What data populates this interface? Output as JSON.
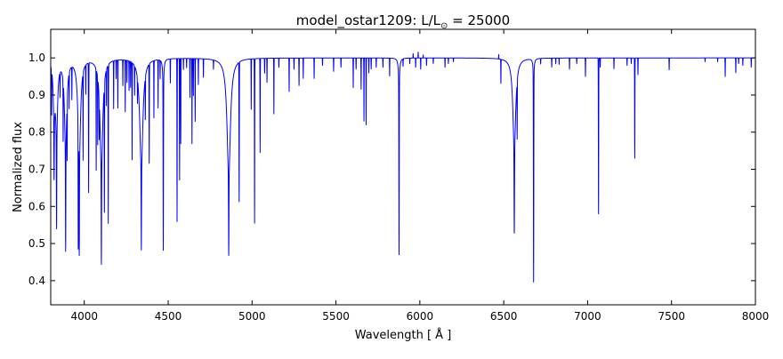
{
  "chart_data": {
    "type": "line",
    "title_parts": [
      "model_ostar1209: L/L",
      "⊙",
      " = 25000"
    ],
    "xlabel": "Wavelength [ Å ]",
    "ylabel": "Normalized flux",
    "xlim": [
      3800,
      8000
    ],
    "ylim": [
      0.335,
      1.077
    ],
    "xticks": [
      4000,
      4500,
      5000,
      5500,
      6000,
      6500,
      7000,
      7500,
      8000
    ],
    "yticks": [
      0.4,
      0.5,
      0.6,
      0.7,
      0.8,
      0.9,
      1.0
    ],
    "grid": false,
    "series": [
      {
        "name": "model_ostar1209",
        "color": "#0000ff",
        "continuum": 1.0,
        "line_format": "[center_A, min_flux, core_sigma_A, wing_depth, wing_hwhm_A]",
        "lines": [
          [
            3805,
            0.876,
            1.2,
            0,
            0
          ],
          [
            3820,
            0.7,
            1.5,
            0.15,
            6
          ],
          [
            3835,
            0.555,
            1.5,
            0.2,
            7
          ],
          [
            3856,
            0.93,
            1,
            0,
            0
          ],
          [
            3874,
            0.83,
            1,
            0,
            0
          ],
          [
            3889,
            0.483,
            1.5,
            0.25,
            8
          ],
          [
            3898,
            0.82,
            1,
            0,
            0
          ],
          [
            3910,
            0.9,
            1,
            0,
            0
          ],
          [
            3926,
            0.91,
            1,
            0,
            0
          ],
          [
            3964,
            0.605,
            1.2,
            0,
            0
          ],
          [
            3970,
            0.47,
            1.5,
            0.28,
            9
          ],
          [
            3993,
            0.756,
            1,
            0,
            0
          ],
          [
            4009,
            0.92,
            1,
            0,
            0
          ],
          [
            4026,
            0.646,
            1.3,
            0,
            0
          ],
          [
            4071,
            0.72,
            1,
            0,
            0
          ],
          [
            4080,
            0.81,
            1,
            0,
            0
          ],
          [
            4089,
            0.88,
            1,
            0,
            0
          ],
          [
            4102,
            0.445,
            1.5,
            0.3,
            10
          ],
          [
            4120,
            0.63,
            1.2,
            0,
            0
          ],
          [
            4132,
            0.9,
            1,
            0,
            0
          ],
          [
            4143,
            0.565,
            1.3,
            0,
            0
          ],
          [
            4175,
            0.87,
            1,
            0,
            0
          ],
          [
            4190,
            0.95,
            1,
            0,
            0
          ],
          [
            4200,
            0.87,
            1,
            0,
            0
          ],
          [
            4230,
            0.93,
            1,
            0,
            0
          ],
          [
            4244,
            0.86,
            1,
            0,
            0
          ],
          [
            4254,
            0.94,
            1,
            0,
            0
          ],
          [
            4267,
            0.92,
            1,
            0,
            0
          ],
          [
            4276,
            0.93,
            1,
            0,
            0
          ],
          [
            4285,
            0.735,
            1,
            0,
            0
          ],
          [
            4300,
            0.92,
            1,
            0,
            0
          ],
          [
            4317,
            0.93,
            1,
            0,
            0
          ],
          [
            4340,
            0.483,
            1.5,
            0.3,
            11
          ],
          [
            4364,
            0.88,
            1,
            0,
            0
          ],
          [
            4387,
            0.728,
            1.2,
            0,
            0
          ],
          [
            4415,
            0.845,
            1,
            0,
            0
          ],
          [
            4440,
            0.87,
            1,
            0,
            0
          ],
          [
            4452,
            0.95,
            1,
            0,
            0
          ],
          [
            4471,
            0.483,
            1.5,
            0.08,
            4
          ],
          [
            4513,
            0.935,
            1,
            0,
            0
          ],
          [
            4553,
            0.56,
            1.1,
            0,
            0
          ],
          [
            4568,
            0.672,
            1.1,
            0,
            0
          ],
          [
            4575,
            0.77,
            1,
            0,
            0
          ],
          [
            4591,
            0.97,
            1,
            0,
            0
          ],
          [
            4610,
            0.975,
            1,
            0,
            0
          ],
          [
            4630,
            0.895,
            1,
            0,
            0
          ],
          [
            4642,
            0.77,
            1,
            0,
            0
          ],
          [
            4650,
            0.9,
            1,
            0,
            0
          ],
          [
            4661,
            0.83,
            1,
            0,
            0
          ],
          [
            4680,
            0.93,
            1,
            0,
            0
          ],
          [
            4710,
            0.95,
            1,
            0,
            0
          ],
          [
            4770,
            0.975,
            1,
            0,
            0
          ],
          [
            4861,
            0.468,
            1.6,
            0.32,
            12
          ],
          [
            4923,
            0.62,
            1.3,
            0,
            0
          ],
          [
            4995,
            0.864,
            1,
            0,
            0
          ],
          [
            5015,
            0.556,
            1.2,
            0,
            0
          ],
          [
            5048,
            0.746,
            1.1,
            0,
            0
          ],
          [
            5075,
            0.96,
            1,
            0,
            0
          ],
          [
            5089,
            0.935,
            1,
            0,
            0
          ],
          [
            5130,
            0.85,
            1,
            0,
            0
          ],
          [
            5160,
            0.975,
            1,
            0,
            0
          ],
          [
            5221,
            0.91,
            1,
            0,
            0
          ],
          [
            5250,
            0.97,
            1,
            0,
            0
          ],
          [
            5280,
            0.926,
            1,
            0,
            0
          ],
          [
            5305,
            0.945,
            1,
            0,
            0
          ],
          [
            5370,
            0.945,
            1,
            0,
            0
          ],
          [
            5420,
            0.98,
            1,
            0,
            0
          ],
          [
            5486,
            0.964,
            1,
            0,
            0
          ],
          [
            5530,
            0.975,
            1,
            0,
            0
          ],
          [
            5603,
            0.92,
            1,
            0,
            0
          ],
          [
            5620,
            0.97,
            1,
            0,
            0
          ],
          [
            5650,
            0.916,
            1,
            0,
            0
          ],
          [
            5667,
            0.83,
            1,
            0,
            0
          ],
          [
            5680,
            0.82,
            1,
            0,
            0
          ],
          [
            5696,
            0.96,
            1,
            0,
            0
          ],
          [
            5710,
            0.97,
            1,
            0,
            0
          ],
          [
            5740,
            0.975,
            1,
            0,
            0
          ],
          [
            5780,
            0.975,
            1,
            0,
            0
          ],
          [
            5820,
            0.952,
            1,
            0,
            0
          ],
          [
            5876,
            0.47,
            1.5,
            0.06,
            5
          ],
          [
            5900,
            0.98,
            1,
            0,
            0
          ],
          [
            5940,
            0.985,
            1,
            0,
            0
          ],
          [
            5960,
            1.012,
            1,
            0,
            0
          ],
          [
            5975,
            0.975,
            1,
            0,
            0
          ],
          [
            5990,
            1.016,
            1,
            0,
            0
          ],
          [
            6005,
            0.97,
            1,
            0,
            0
          ],
          [
            6020,
            1.008,
            1,
            0,
            0
          ],
          [
            6040,
            0.98,
            1,
            0,
            0
          ],
          [
            6080,
            0.985,
            1,
            0,
            0
          ],
          [
            6150,
            0.975,
            1,
            0,
            0
          ],
          [
            6170,
            0.985,
            1,
            0,
            0
          ],
          [
            6200,
            0.99,
            1,
            0,
            0
          ],
          [
            6470,
            1.012,
            1,
            0,
            0
          ],
          [
            6483,
            0.935,
            1,
            0,
            0
          ],
          [
            6563,
            0.528,
            1.8,
            0.25,
            10
          ],
          [
            6580,
            0.835,
            1,
            0,
            0
          ],
          [
            6678,
            0.397,
            1.5,
            0.05,
            4
          ],
          [
            6720,
            0.985,
            1,
            0,
            0
          ],
          [
            6786,
            0.976,
            1,
            0,
            0
          ],
          [
            6810,
            0.985,
            1,
            0,
            0
          ],
          [
            6830,
            0.983,
            1,
            0,
            0
          ],
          [
            6892,
            0.97,
            1,
            0,
            0
          ],
          [
            6935,
            0.985,
            1,
            0,
            0
          ],
          [
            6987,
            0.95,
            1,
            0,
            0
          ],
          [
            7065,
            0.58,
            1.3,
            0,
            0
          ],
          [
            7075,
            0.975,
            1,
            0,
            0
          ],
          [
            7157,
            0.971,
            1,
            0,
            0
          ],
          [
            7235,
            0.98,
            1,
            0,
            0
          ],
          [
            7260,
            0.985,
            1,
            0,
            0
          ],
          [
            7281,
            0.73,
            1.2,
            0,
            0
          ],
          [
            7300,
            0.955,
            1,
            0,
            0
          ],
          [
            7486,
            0.968,
            1,
            0,
            0
          ],
          [
            7700,
            0.99,
            1,
            0,
            0
          ],
          [
            7775,
            0.99,
            1,
            0,
            0
          ],
          [
            7820,
            0.95,
            1,
            0,
            0
          ],
          [
            7883,
            0.96,
            1,
            0,
            0
          ],
          [
            7900,
            0.985,
            1,
            0,
            0
          ],
          [
            7925,
            0.98,
            1,
            0,
            0
          ],
          [
            7975,
            0.975,
            1,
            0,
            0
          ]
        ]
      }
    ]
  }
}
